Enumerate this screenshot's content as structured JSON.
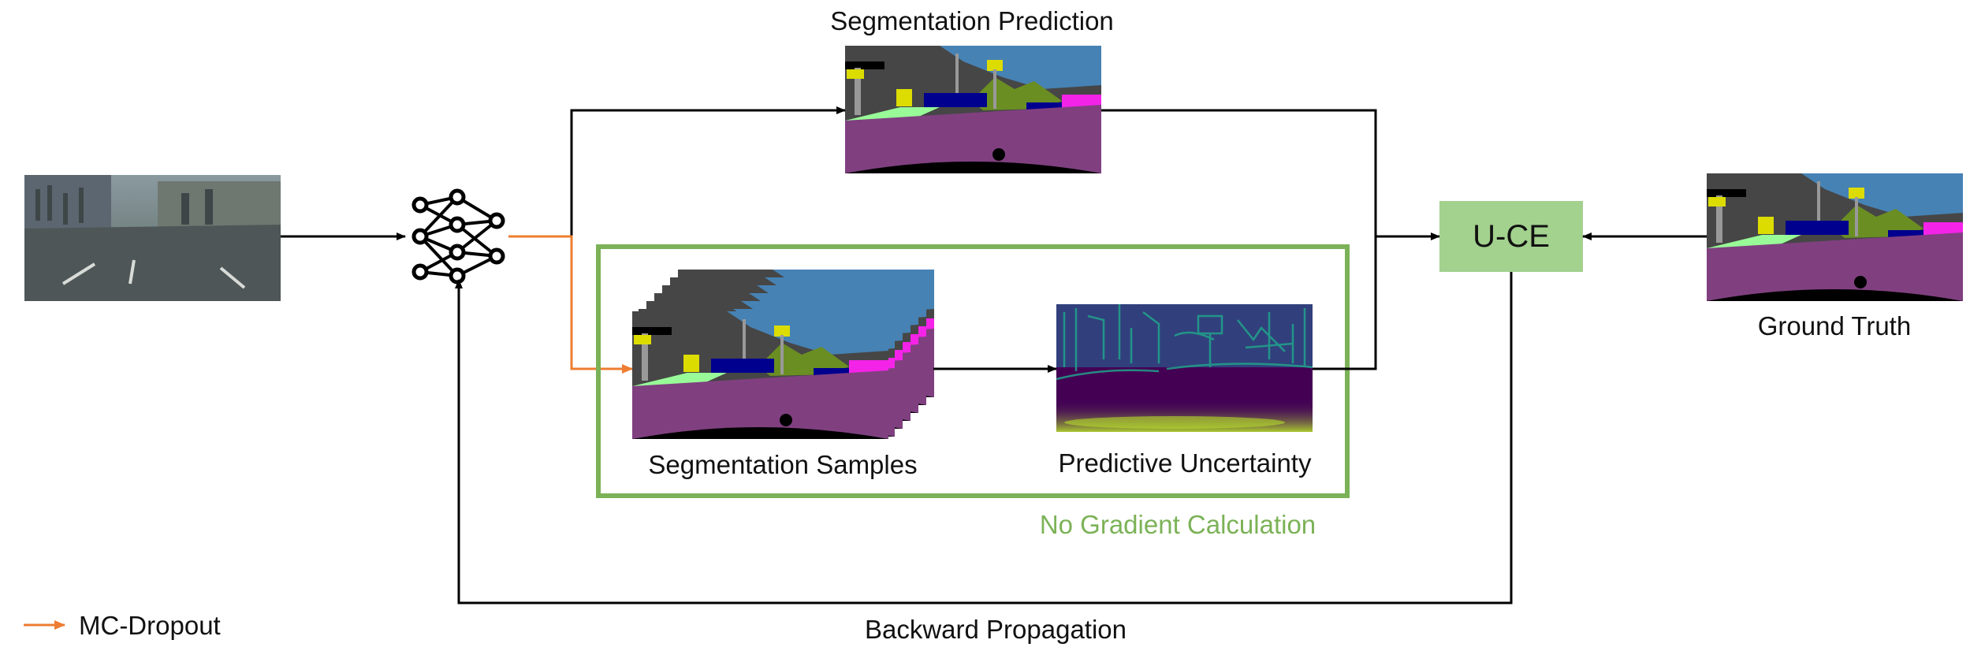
{
  "labels": {
    "segmentation_prediction": "Segmentation Prediction",
    "segmentation_samples": "Segmentation Samples",
    "predictive_uncertainty": "Predictive Uncertainty",
    "no_gradient_calculation": "No Gradient Calculation",
    "loss_box": "U-CE",
    "ground_truth": "Ground Truth",
    "backward_propagation": "Backward Propagation",
    "legend_mc_dropout": "MC-Dropout"
  },
  "colors": {
    "orange_arrow": "#ED7D31",
    "green_box_border": "#7CB257",
    "green_text": "#7CB257",
    "loss_box_fill": "#A3D18E",
    "seg_road": "#804080",
    "seg_sky": "#4682B4",
    "seg_vegetation": "#6B8E23",
    "seg_building": "#464646",
    "seg_sign": "#DCDC00",
    "seg_sidewalk": "#F423E8",
    "seg_car": "#00008E",
    "uncertainty_base": "#3B0F5E",
    "uncertainty_high": "#21A38C"
  },
  "icons": {
    "network": "neural-network-icon"
  }
}
